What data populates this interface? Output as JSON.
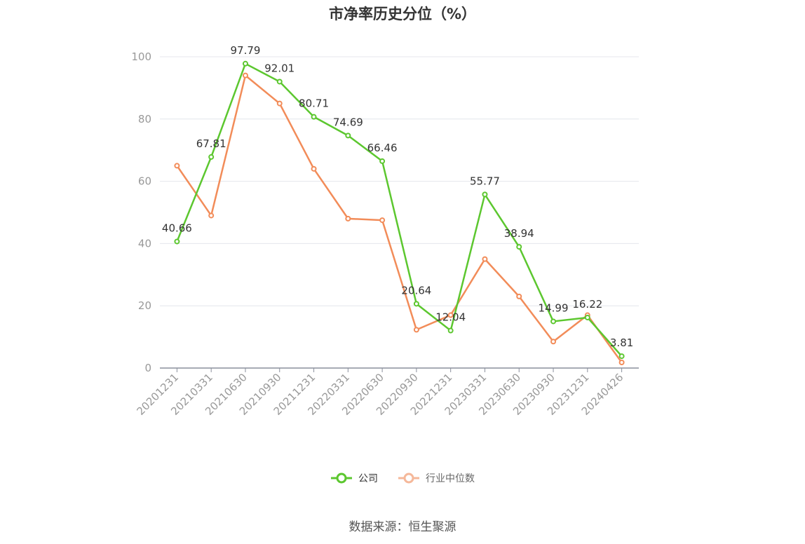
{
  "chart_data": {
    "type": "line",
    "title": "市净率历史分位（%）",
    "categories": [
      "20201231",
      "20210331",
      "20210630",
      "20210930",
      "20211231",
      "20220331",
      "20220630",
      "20220930",
      "20221231",
      "20230331",
      "20230630",
      "20230930",
      "20231231",
      "20240426"
    ],
    "series": [
      {
        "name": "公司",
        "color": "#5cc72f",
        "values": [
          40.66,
          67.81,
          97.79,
          92.01,
          80.71,
          74.69,
          66.46,
          20.64,
          12.04,
          55.77,
          38.94,
          14.99,
          16.22,
          3.81
        ],
        "labels": [
          "40.66",
          "67.81",
          "97.79",
          "92.01",
          "80.71",
          "74.69",
          "66.46",
          "20.64",
          "12.04",
          "55.77",
          "38.94",
          "14.99",
          "16.22",
          "3.81"
        ]
      },
      {
        "name": "行业中位数",
        "color": "#f28c59",
        "values": [
          65,
          49,
          94,
          85,
          64,
          48,
          47.5,
          12.3,
          17,
          35,
          23,
          8.5,
          17,
          1.8
        ]
      }
    ],
    "ylim": [
      0,
      100
    ],
    "yticks": [
      0,
      20,
      40,
      60,
      80,
      100
    ],
    "grid": true,
    "legend_position": "bottom"
  },
  "legend": {
    "company": "公司",
    "industry": "行业中位数"
  },
  "source": "数据来源：恒生聚源",
  "colors": {
    "company": "#5cc72f",
    "industry": "#f28c59",
    "industry_legend": "#f5b89a"
  },
  "icons": {
    "legend_marker": "circle-line-icon"
  }
}
